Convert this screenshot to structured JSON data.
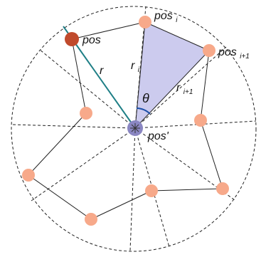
{
  "labels": {
    "pos": "pos",
    "pos_i_base": "pos",
    "pos_i_sub": "i",
    "pos_i1_base": "pos",
    "pos_i1_sub": "i+1",
    "r": "r",
    "r_i_base": "r",
    "r_i_sub": "i",
    "r_i1_base": "r",
    "r_i1_sub": "i+1",
    "theta": "θ",
    "pos_prime": "pos'"
  },
  "colors": {
    "node": "#f7a98a",
    "pos_node": "#c04a2c",
    "center_node": "#8a86c2",
    "triangle_fill": "#cccbee",
    "radius_line": "#1f7f86",
    "theta_arc": "#1c4fa8"
  }
}
